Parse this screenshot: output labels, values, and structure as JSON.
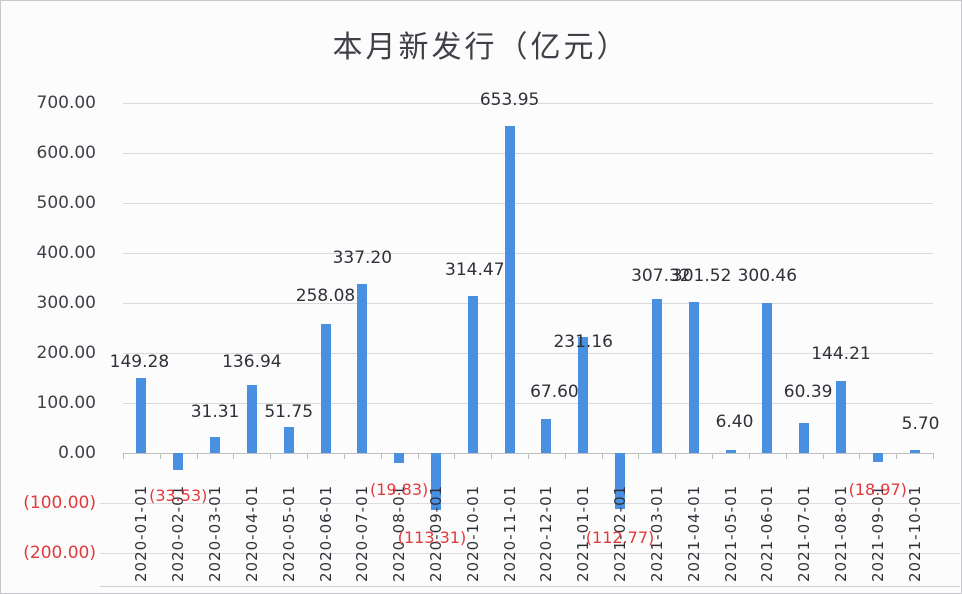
{
  "chart_data": {
    "type": "bar",
    "title": "本月新发行（亿元）",
    "xlabel": "",
    "ylabel": "",
    "ylim": [
      -200,
      700
    ],
    "yticks": [
      "700.00",
      "600.00",
      "500.00",
      "400.00",
      "300.00",
      "200.00",
      "100.00",
      "0.00",
      "(100.00)",
      "(200.00)"
    ],
    "grid": true,
    "legend": null,
    "categories": [
      "2020-01-01",
      "2020-02-01",
      "2020-03-01",
      "2020-04-01",
      "2020-05-01",
      "2020-06-01",
      "2020-07-01",
      "2020-08-01",
      "2020-09-01",
      "2020-10-01",
      "2020-11-01",
      "2020-12-01",
      "2021-01-01",
      "2021-02-01",
      "2021-03-01",
      "2021-04-01",
      "2021-05-01",
      "2021-06-01",
      "2021-07-01",
      "2021-08-01",
      "2021-09-01",
      "2021-10-01"
    ],
    "values": [
      149.28,
      -33.53,
      31.31,
      136.94,
      51.75,
      258.08,
      337.2,
      -19.83,
      -113.31,
      314.47,
      653.95,
      67.6,
      231.16,
      -112.77,
      307.32,
      301.52,
      6.4,
      300.46,
      60.39,
      144.21,
      -18.97,
      5.7
    ],
    "data_labels": [
      "149.28",
      "(33.53)",
      "31.31",
      "136.94",
      "51.75",
      "258.08",
      "337.20",
      "(19.83)",
      "(113.31)",
      "314.47",
      "653.95",
      "67.60",
      "231.16",
      "(112.77)",
      "307.32",
      "301.52",
      "6.40",
      "300.46",
      "60.39",
      "144.21",
      "(18.97)",
      "5.70"
    ],
    "bar_color": "#4a90e2",
    "negative_label_color": "#e03a3a"
  }
}
